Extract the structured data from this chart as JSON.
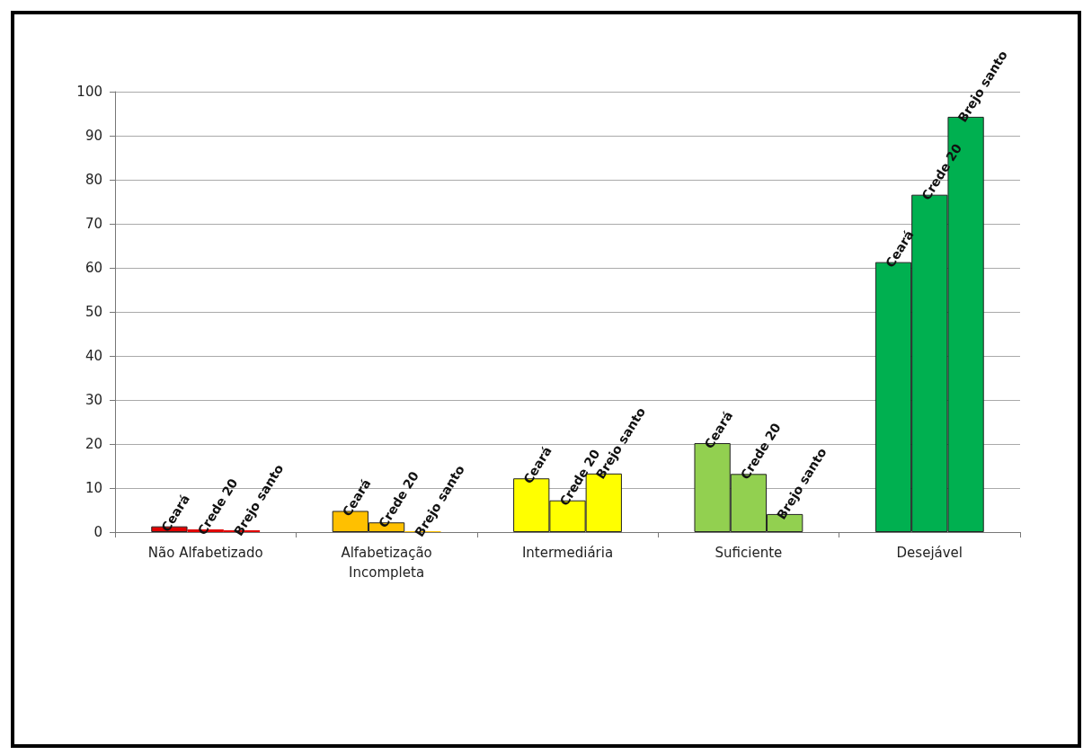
{
  "chart_data": {
    "type": "bar",
    "categories": [
      "Não Alfabetizado",
      "Alfabetização\nIncompleta",
      "Intermediária",
      "Suficiente",
      "Desejável"
    ],
    "series": [
      {
        "name": "Ceará",
        "colors": [
          "#e00000",
          "#ffc000",
          "#ffff00",
          "#92d050",
          "#00b050"
        ],
        "values": [
          1.3,
          4.8,
          12.2,
          20.2,
          61.3
        ]
      },
      {
        "name": "Crede 20",
        "colors": [
          "#e00000",
          "#ffc000",
          "#ffff00",
          "#92d050",
          "#00b050"
        ],
        "values": [
          0.6,
          2.2,
          7.2,
          13.2,
          76.6
        ]
      },
      {
        "name": "Brejo santo",
        "colors": [
          "#e00000",
          "#ffc000",
          "#ffff00",
          "#92d050",
          "#00b050"
        ],
        "values": [
          0.4,
          0.2,
          13.3,
          4.1,
          94.3
        ]
      }
    ],
    "ylim": [
      0,
      100
    ],
    "yticks": [
      0,
      10,
      20,
      30,
      40,
      50,
      60,
      70,
      80,
      90,
      100
    ],
    "grid": "y",
    "legend": false
  }
}
